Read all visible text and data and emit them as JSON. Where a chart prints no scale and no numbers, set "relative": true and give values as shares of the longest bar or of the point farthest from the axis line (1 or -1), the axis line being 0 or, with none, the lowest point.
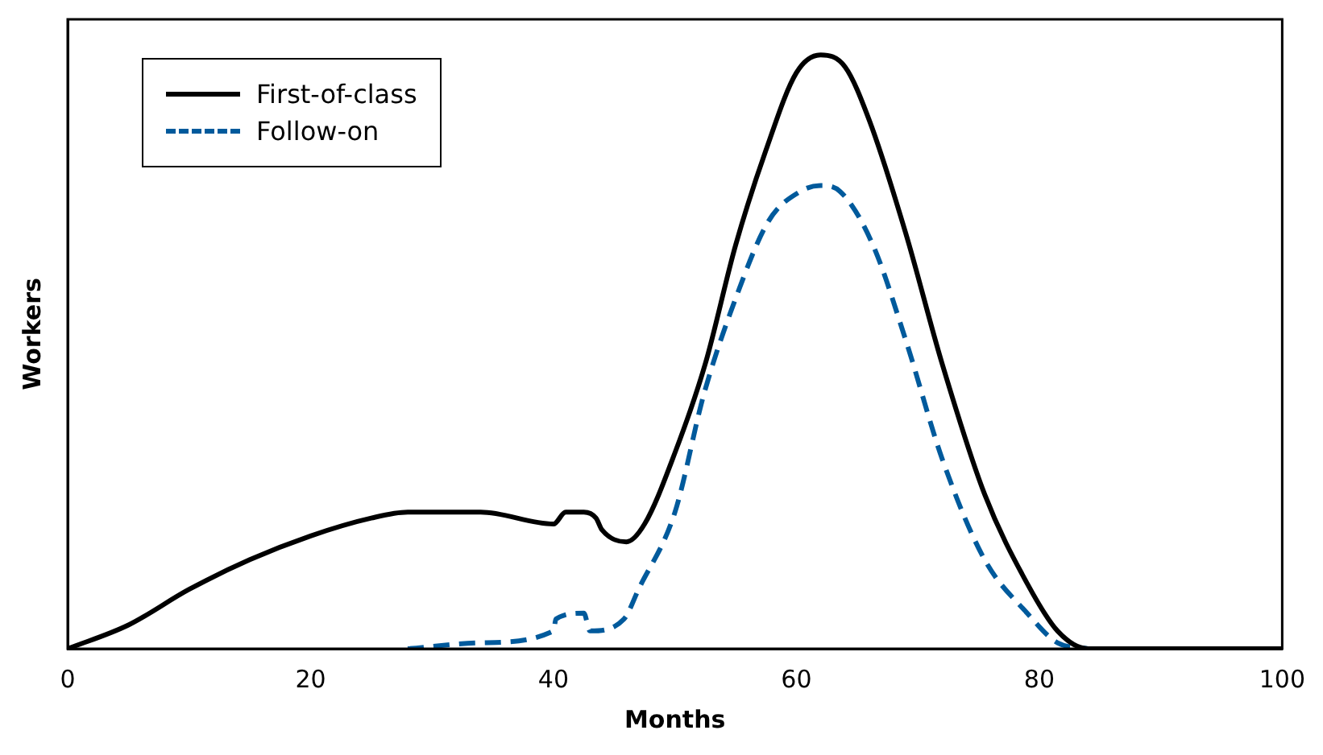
{
  "chart_data": {
    "type": "line",
    "xlabel": "Months",
    "ylabel": "Workers",
    "relative": true,
    "xlim": [
      0,
      100
    ],
    "xticks": [
      0,
      20,
      40,
      60,
      80,
      100
    ],
    "grid": false,
    "legend": "top left",
    "marker": "none",
    "series": [
      {
        "name": "First-of-class",
        "color": "#000000",
        "line_style": "solid",
        "x": [
          0,
          5,
          10,
          15,
          20,
          25,
          28,
          34,
          40,
          41,
          42.5,
          43.5,
          44,
          46,
          47.5,
          50,
          52.5,
          55,
          57.5,
          60,
          62,
          64,
          66,
          69,
          72,
          75.5,
          79,
          81.5,
          84,
          100
        ],
        "values": [
          0,
          0.04,
          0.1,
          0.15,
          0.19,
          0.22,
          0.23,
          0.23,
          0.21,
          0.23,
          0.23,
          0.22,
          0.2,
          0.18,
          0.21,
          0.33,
          0.48,
          0.68,
          0.84,
          0.97,
          1,
          0.98,
          0.89,
          0.7,
          0.48,
          0.26,
          0.11,
          0.03,
          0,
          0
        ]
      },
      {
        "name": "Follow-on",
        "color": "#005a9c",
        "line_style": "dashed",
        "x": [
          28,
          34,
          40,
          40.2,
          42.5,
          43,
          45.8,
          47,
          50,
          52.4,
          55,
          57.7,
          60.3,
          62,
          63.6,
          66.3,
          69,
          72,
          75.5,
          79,
          81.5,
          84
        ],
        "values": [
          0,
          0.01,
          0.03,
          0.05,
          0.06,
          0.03,
          0.05,
          0.1,
          0.23,
          0.43,
          0.59,
          0.72,
          0.77,
          0.78,
          0.77,
          0.68,
          0.52,
          0.32,
          0.15,
          0.06,
          0.01,
          0
        ]
      }
    ]
  }
}
